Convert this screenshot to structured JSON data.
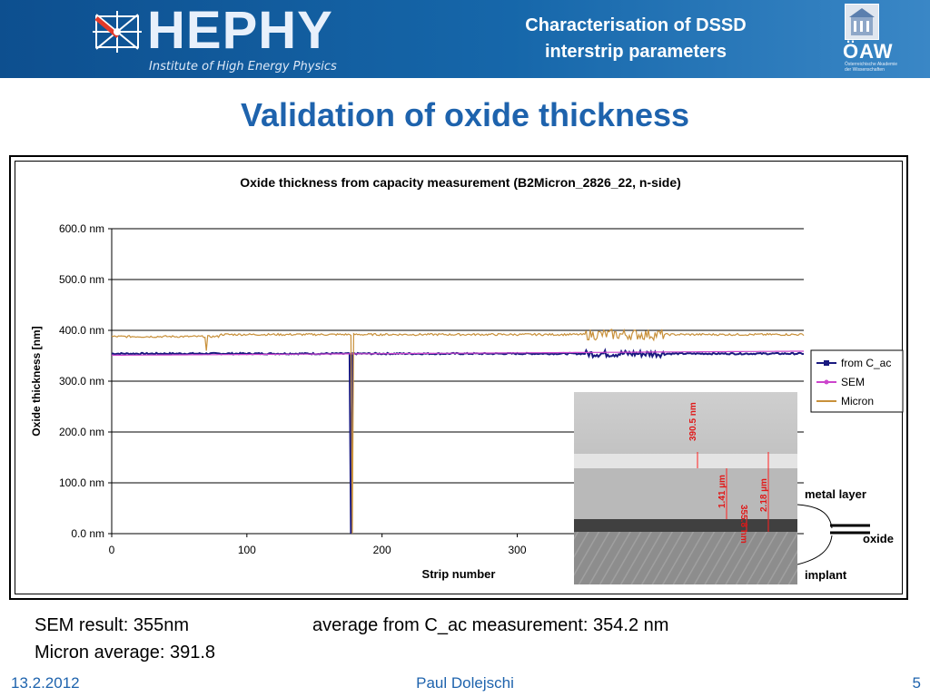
{
  "header": {
    "logo_text": "HEPHY",
    "logo_subtitle": "Institute of High Energy Physics",
    "title_line1": "Characterisation of DSSD",
    "title_line2": "interstrip parameters",
    "partner_logo": "ÖAW",
    "partner_subtitle": "Österreichische Akademie der Wissenschaften"
  },
  "slide_title": "Validation of oxide thickness",
  "chart_data": {
    "type": "line",
    "title": "Oxide thickness from capacity measurement (B2Micron_2826_22, n-side)",
    "xlabel": "Strip number",
    "ylabel": "Oxide thickness [nm]",
    "xlim": [
      0,
      512
    ],
    "ylim": [
      0,
      600
    ],
    "xticks": [
      0,
      100,
      200,
      300
    ],
    "yticks": [
      "0.0 nm",
      "100.0 nm",
      "200.0 nm",
      "300.0 nm",
      "400.0 nm",
      "500.0 nm",
      "600.0 nm"
    ],
    "grid": "horizontal",
    "legend_position": "right",
    "series": [
      {
        "name": "from C_ac",
        "color": "#1a1a80",
        "baseline": 354.2,
        "dips": [
          {
            "x": 177,
            "y": 0
          }
        ]
      },
      {
        "name": "SEM",
        "color": "#cc44cc",
        "constant": 355
      },
      {
        "name": "Micron",
        "color": "#c8903a",
        "baseline": 391.8,
        "dips": [
          {
            "x": 70,
            "y": 360
          },
          {
            "x": 178,
            "y": 0
          }
        ]
      }
    ]
  },
  "sem_image": {
    "labels": [
      "390.5 nm",
      "1.41 µm",
      "355.8 nm",
      "2.18 µm"
    ]
  },
  "annotations": {
    "metal_layer": "metal layer",
    "oxide": "oxide",
    "implant": "implant"
  },
  "notes": {
    "sem_result": "SEM result: 355nm",
    "micron_average": "Micron average: 391.8",
    "cac_average": "average from C_ac measurement: 354.2 nm"
  },
  "footer": {
    "date": "13.2.2012",
    "author": "Paul Dolejschi",
    "page": "5"
  },
  "colors": {
    "header_blue": "#1667aa",
    "title_blue": "#1e63ad"
  }
}
